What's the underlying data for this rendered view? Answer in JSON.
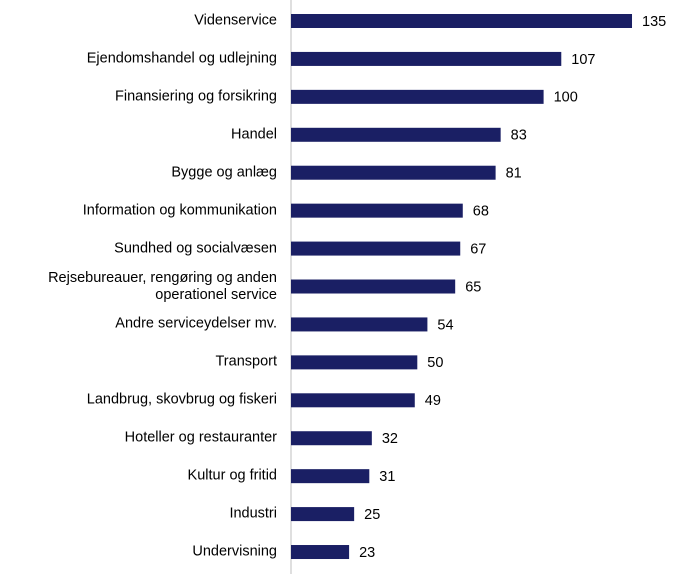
{
  "chart_data": {
    "type": "bar",
    "orientation": "horizontal",
    "categories": [
      "Videnservice",
      "Ejendomshandel og udlejning",
      "Finansiering og forsikring",
      "Handel",
      "Bygge og anlæg",
      "Information og kommunikation",
      "Sundhed og socialvæsen",
      "Rejsebureauer, rengøring og anden\noperationel service",
      "Andre serviceydelser  mv.",
      "Transport",
      "Landbrug, skovbrug og fiskeri",
      "Hoteller og restauranter",
      "Kultur og fritid",
      "Industri",
      "Undervisning"
    ],
    "values": [
      135,
      107,
      100,
      83,
      81,
      68,
      67,
      65,
      54,
      50,
      49,
      32,
      31,
      25,
      23
    ],
    "color": "#1a1f64"
  }
}
